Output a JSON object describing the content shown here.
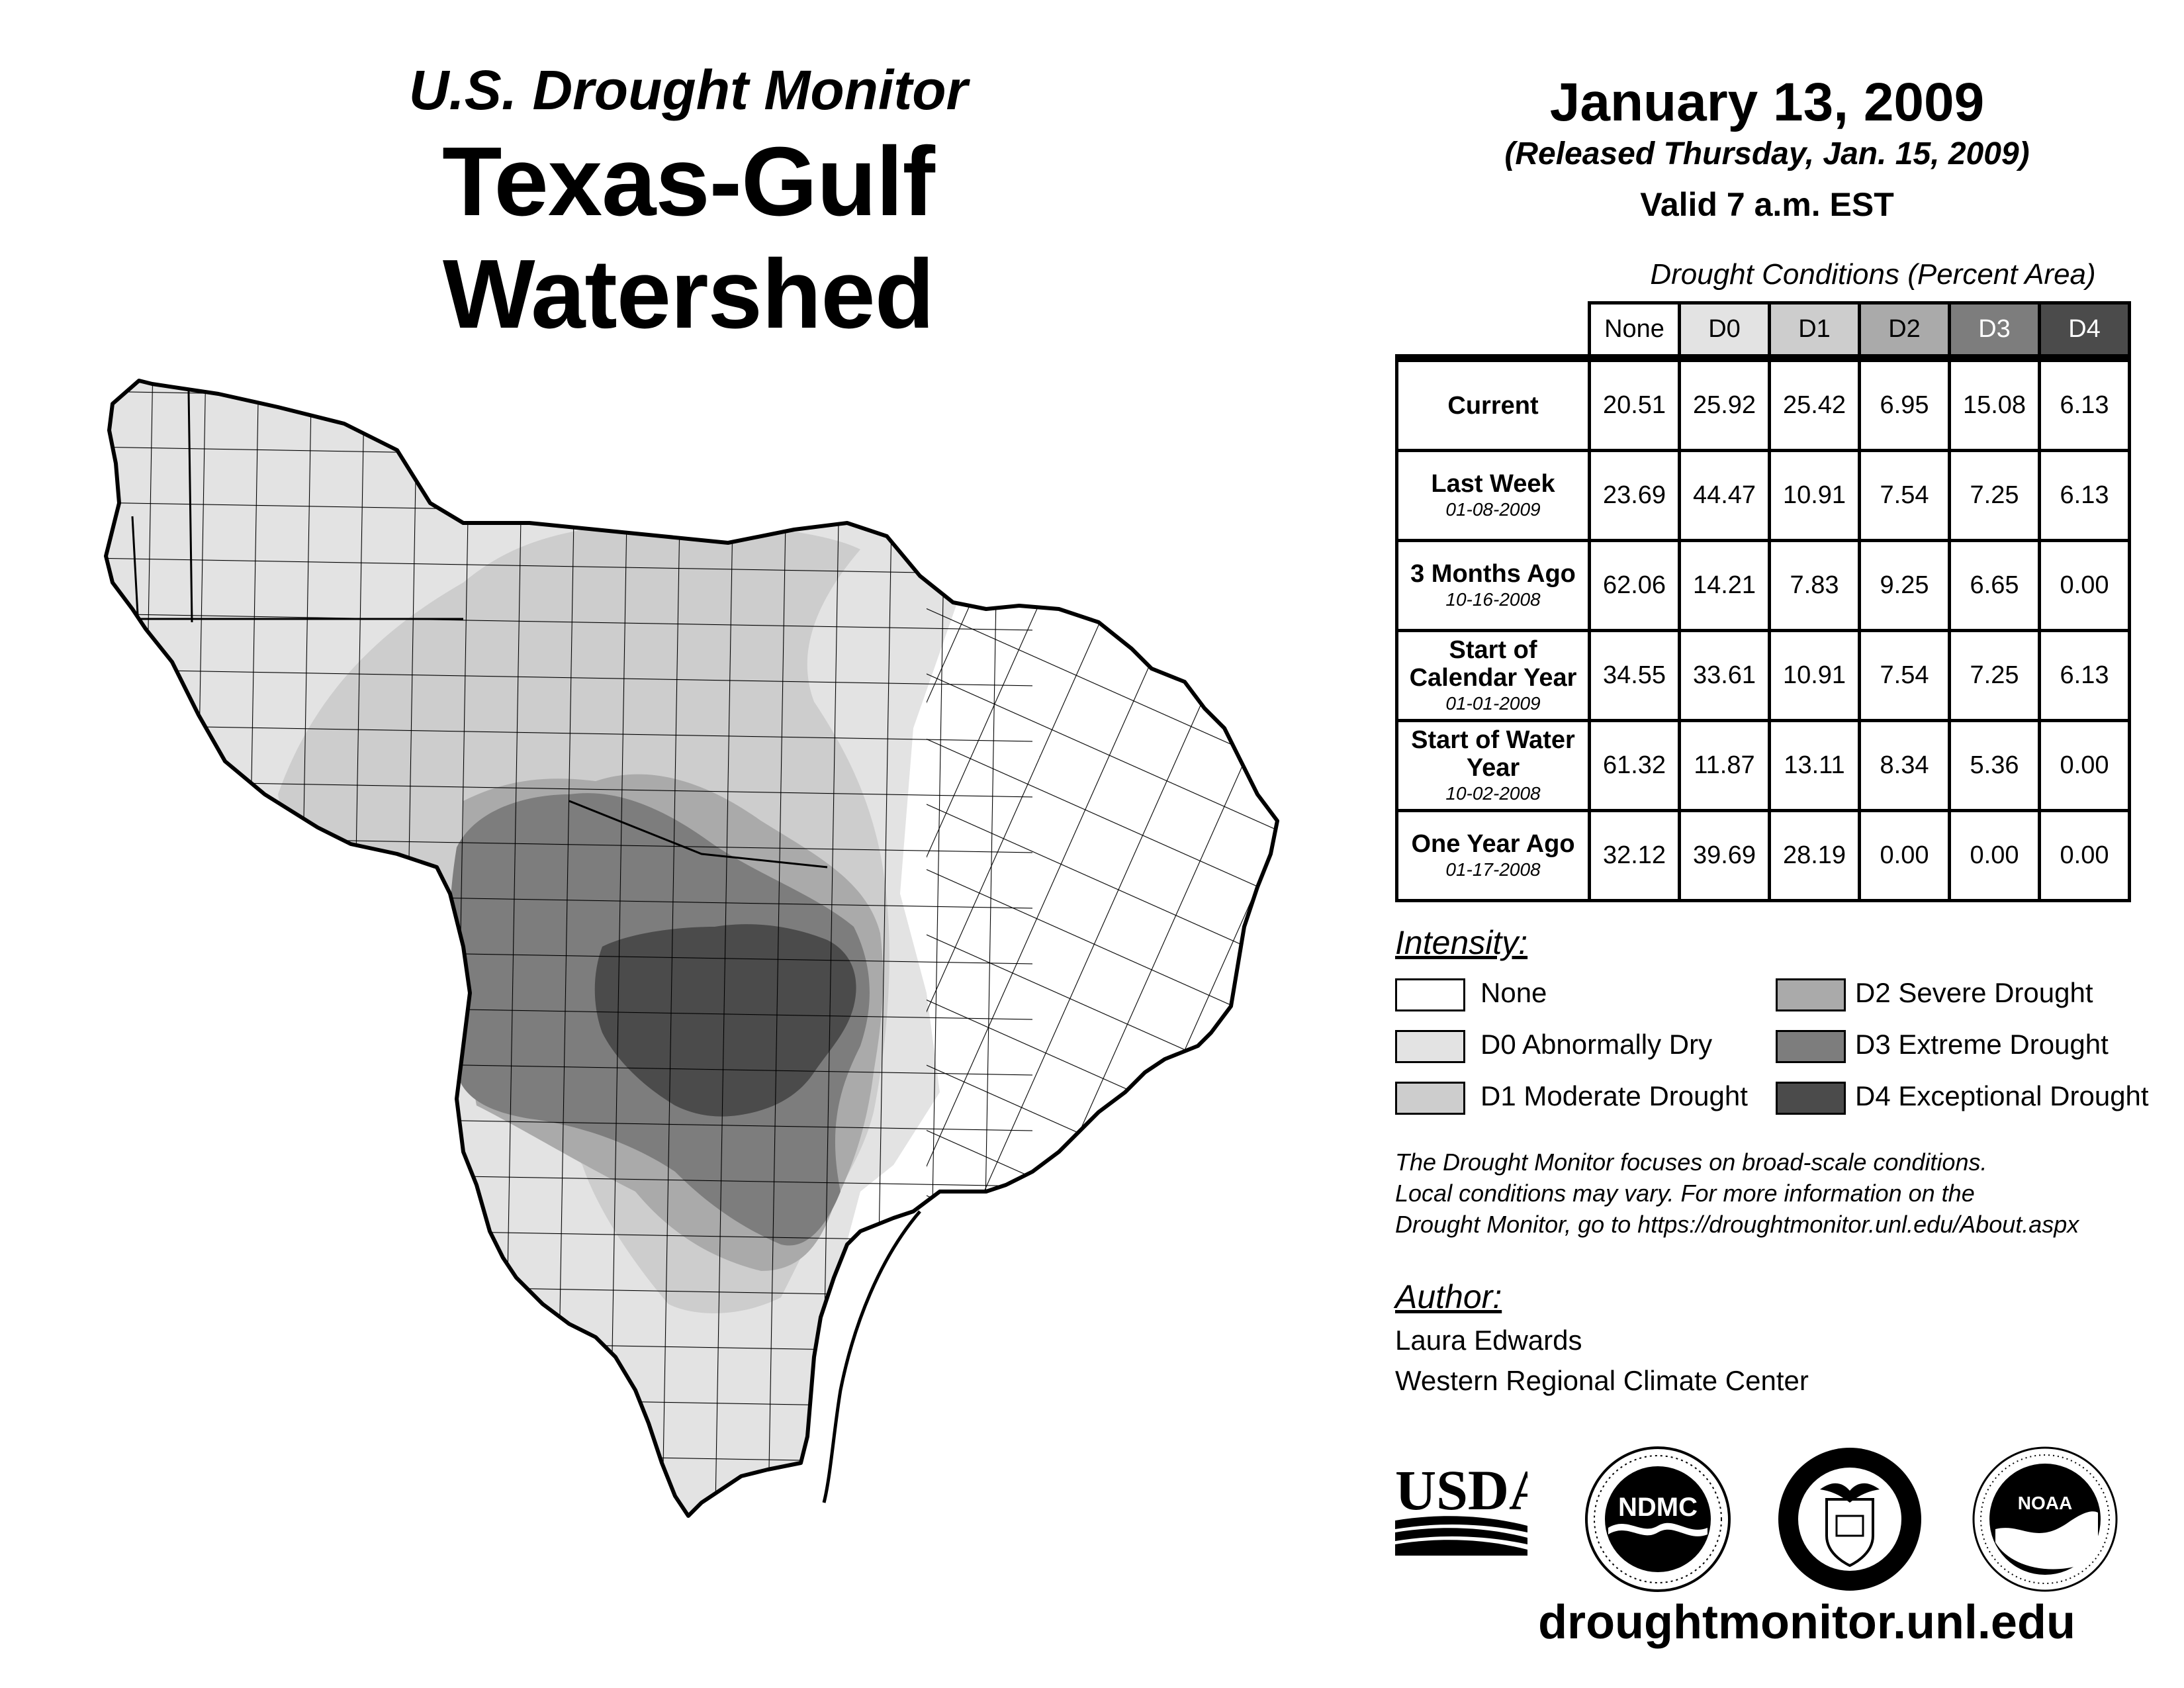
{
  "header": {
    "subtitle": "U.S. Drought Monitor",
    "title": "Texas-Gulf Watershed",
    "date": "January 13, 2009",
    "released": "(Released Thursday, Jan. 15, 2009)",
    "valid": "Valid 7 a.m. EST"
  },
  "table": {
    "title": "Drought Conditions (Percent Area)",
    "columns": [
      "None",
      "D0",
      "D1",
      "D2",
      "D3",
      "D4"
    ],
    "rows": [
      {
        "label": "Current",
        "date": "",
        "values": [
          "20.51",
          "25.92",
          "25.42",
          "6.95",
          "15.08",
          "6.13"
        ]
      },
      {
        "label": "Last Week",
        "date": "01-08-2009",
        "values": [
          "23.69",
          "44.47",
          "10.91",
          "7.54",
          "7.25",
          "6.13"
        ]
      },
      {
        "label": "3 Months Ago",
        "date": "10-16-2008",
        "values": [
          "62.06",
          "14.21",
          "7.83",
          "9.25",
          "6.65",
          "0.00"
        ]
      },
      {
        "label": "Start of Calendar Year",
        "date": "01-01-2009",
        "values": [
          "34.55",
          "33.61",
          "10.91",
          "7.54",
          "7.25",
          "6.13"
        ]
      },
      {
        "label": "Start of Water Year",
        "date": "10-02-2008",
        "values": [
          "61.32",
          "11.87",
          "13.11",
          "8.34",
          "5.36",
          "0.00"
        ]
      },
      {
        "label": "One Year Ago",
        "date": "01-17-2008",
        "values": [
          "32.12",
          "39.69",
          "28.19",
          "0.00",
          "0.00",
          "0.00"
        ]
      }
    ]
  },
  "legend": {
    "title": "Intensity:",
    "items": [
      {
        "label": "None",
        "color": "#ffffff"
      },
      {
        "label": "D0 Abnormally Dry",
        "color": "#e3e3e3"
      },
      {
        "label": "D1 Moderate Drought",
        "color": "#cdcdcd"
      },
      {
        "label": "D2 Severe Drought",
        "color": "#aaaaaa"
      },
      {
        "label": "D3 Extreme Drought",
        "color": "#7d7d7d"
      },
      {
        "label": "D4 Exceptional Drought",
        "color": "#4b4b4b"
      }
    ]
  },
  "note": {
    "line1": "The Drought Monitor focuses on broad-scale conditions.",
    "line2": "Local conditions may vary. For more information on the",
    "line3": "Drought Monitor, go to https://droughtmonitor.unl.edu/About.aspx"
  },
  "author": {
    "title": "Author:",
    "name": "Laura Edwards",
    "org": "Western Regional Climate Center"
  },
  "logos": {
    "usda": "USDA",
    "ndmc": "NDMC",
    "noaa": "NOAA"
  },
  "footer": {
    "url": "droughtmonitor.unl.edu"
  },
  "colors": {
    "none": "#ffffff",
    "d0": "#e3e3e3",
    "d1": "#cdcdcd",
    "d2": "#aaaaaa",
    "d3": "#7d7d7d",
    "d4": "#4b4b4b"
  }
}
